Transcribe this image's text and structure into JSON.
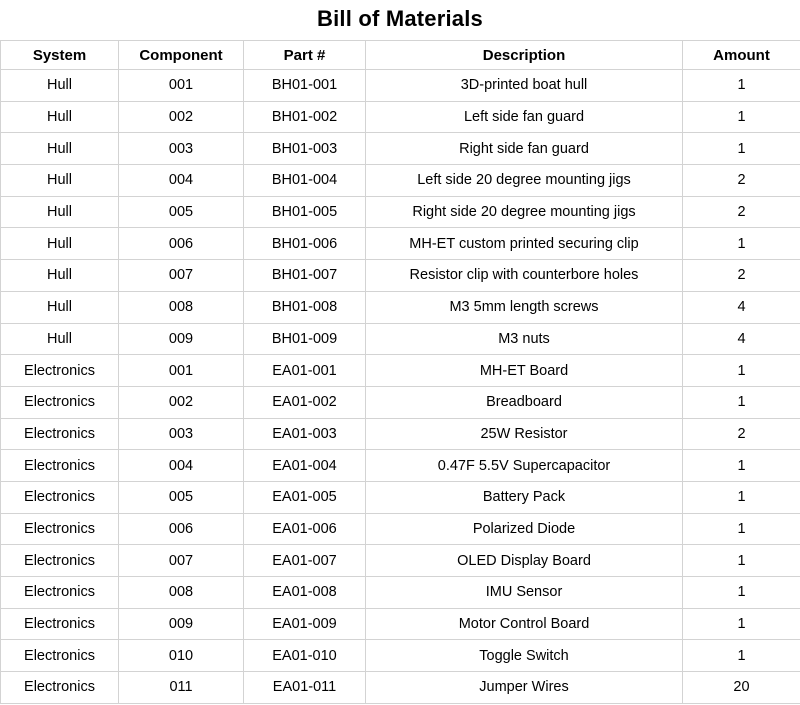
{
  "title": "Bill of Materials",
  "colors": {
    "background": "#ffffff",
    "text": "#000000",
    "grid_border": "#d3d3d3"
  },
  "table": {
    "columns": [
      "System",
      "Component",
      "Part #",
      "Description",
      "Amount"
    ],
    "rows": [
      [
        "Hull",
        "001",
        "BH01-001",
        "3D-printed boat hull",
        "1"
      ],
      [
        "Hull",
        "002",
        "BH01-002",
        "Left side fan guard",
        "1"
      ],
      [
        "Hull",
        "003",
        "BH01-003",
        "Right side fan guard",
        "1"
      ],
      [
        "Hull",
        "004",
        "BH01-004",
        "Left side 20 degree mounting jigs",
        "2"
      ],
      [
        "Hull",
        "005",
        "BH01-005",
        "Right side 20 degree mounting jigs",
        "2"
      ],
      [
        "Hull",
        "006",
        "BH01-006",
        "MH-ET custom printed securing clip",
        "1"
      ],
      [
        "Hull",
        "007",
        "BH01-007",
        "Resistor clip with counterbore holes",
        "2"
      ],
      [
        "Hull",
        "008",
        "BH01-008",
        "M3 5mm length screws",
        "4"
      ],
      [
        "Hull",
        "009",
        "BH01-009",
        "M3 nuts",
        "4"
      ],
      [
        "Electronics",
        "001",
        "EA01-001",
        "MH-ET Board",
        "1"
      ],
      [
        "Electronics",
        "002",
        "EA01-002",
        "Breadboard",
        "1"
      ],
      [
        "Electronics",
        "003",
        "EA01-003",
        "25W Resistor",
        "2"
      ],
      [
        "Electronics",
        "004",
        "EA01-004",
        "0.47F 5.5V Supercapacitor",
        "1"
      ],
      [
        "Electronics",
        "005",
        "EA01-005",
        "Battery Pack",
        "1"
      ],
      [
        "Electronics",
        "006",
        "EA01-006",
        "Polarized Diode",
        "1"
      ],
      [
        "Electronics",
        "007",
        "EA01-007",
        "OLED Display Board",
        "1"
      ],
      [
        "Electronics",
        "008",
        "EA01-008",
        "IMU Sensor",
        "1"
      ],
      [
        "Electronics",
        "009",
        "EA01-009",
        "Motor Control Board",
        "1"
      ],
      [
        "Electronics",
        "010",
        "EA01-010",
        "Toggle Switch",
        "1"
      ],
      [
        "Electronics",
        "011",
        "EA01-011",
        "Jumper Wires",
        "20"
      ]
    ]
  }
}
